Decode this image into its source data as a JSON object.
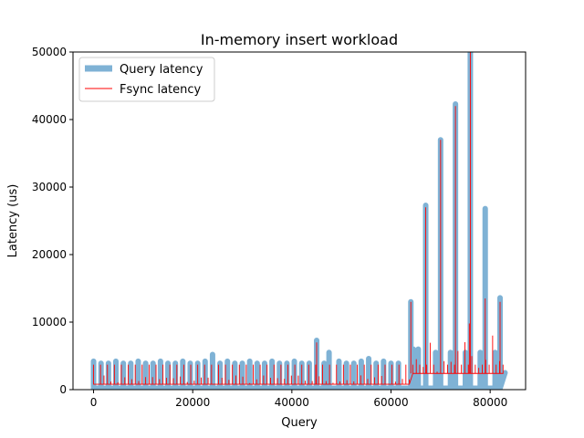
{
  "chart_data": {
    "type": "line",
    "title": "In-memory insert workload",
    "xlabel": "Query",
    "ylabel": "Latency (us)",
    "xlim": [
      -4150,
      87150
    ],
    "ylim": [
      0,
      50000
    ],
    "xticks": [
      0,
      20000,
      40000,
      60000,
      80000
    ],
    "yticks": [
      0,
      10000,
      20000,
      30000,
      40000,
      50000
    ],
    "grid": false,
    "legend_position": "top-left",
    "series": [
      {
        "name": "Query latency",
        "color": "#7fb2d5",
        "style": "thick line",
        "baseline": 200,
        "typical_spike": 3900,
        "spike_points": [
          [
            24000,
            5200
          ],
          [
            45000,
            7300
          ],
          [
            47500,
            5500
          ],
          [
            55500,
            4600
          ],
          [
            63500,
            5500
          ],
          [
            64000,
            13000
          ],
          [
            65500,
            6000
          ],
          [
            67000,
            27300
          ],
          [
            70000,
            37000
          ],
          [
            73000,
            42300
          ],
          [
            76000,
            50000
          ],
          [
            79000,
            26800
          ],
          [
            82000,
            13600
          ]
        ]
      },
      {
        "name": "Fsync latency",
        "color": "#ff0000",
        "style": "thin line",
        "baseline_before_64000": 800,
        "baseline_after_64000": 2400,
        "typical_spike": 3700,
        "spike_points": [
          [
            45000,
            7000
          ],
          [
            64000,
            13000
          ],
          [
            67000,
            27000
          ],
          [
            70000,
            37000
          ],
          [
            73000,
            42000
          ],
          [
            75800,
            9800
          ],
          [
            76000,
            50000
          ],
          [
            79000,
            13500
          ],
          [
            80500,
            8000
          ],
          [
            82000,
            13000
          ]
        ]
      }
    ]
  }
}
